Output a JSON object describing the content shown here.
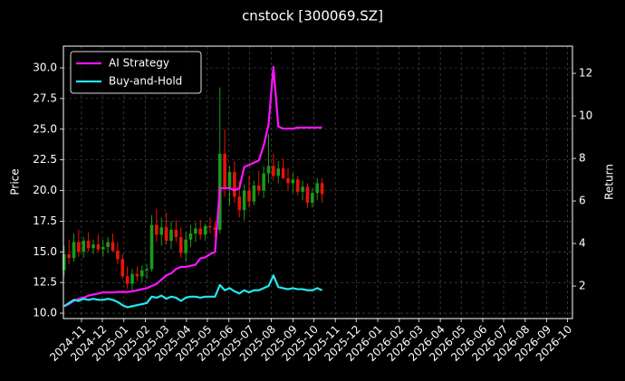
{
  "chart_data": {
    "type": "candlestick",
    "title": "cnstock [300069.SZ]",
    "ylabel": "Price",
    "y2label": "Return",
    "x": [
      "2024-10-07",
      "2024-10-14",
      "2024-10-21",
      "2024-10-28",
      "2024-11-04",
      "2024-11-11",
      "2024-11-18",
      "2024-11-25",
      "2024-12-02",
      "2024-12-09",
      "2024-12-16",
      "2024-12-23",
      "2024-12-30",
      "2025-01-06",
      "2025-01-13",
      "2025-01-20",
      "2025-01-27",
      "2025-02-03",
      "2025-02-10",
      "2025-02-17",
      "2025-02-24",
      "2025-03-03",
      "2025-03-10",
      "2025-03-17",
      "2025-03-24",
      "2025-03-31",
      "2025-04-07",
      "2025-04-14",
      "2025-04-21",
      "2025-04-28",
      "2025-05-05",
      "2025-05-12",
      "2025-05-19",
      "2025-05-26",
      "2025-06-02",
      "2025-06-09",
      "2025-06-16",
      "2025-06-23",
      "2025-06-30",
      "2025-07-07",
      "2025-07-14",
      "2025-07-21",
      "2025-07-28",
      "2025-08-04",
      "2025-08-11",
      "2025-08-18",
      "2025-08-25",
      "2025-09-01",
      "2025-09-08",
      "2025-09-15",
      "2025-09-22",
      "2025-09-29",
      "2025-10-06",
      "2025-10-13"
    ],
    "open": [
      13.5,
      14.8,
      14.5,
      15.8,
      15.0,
      15.9,
      15.3,
      15.6,
      15.2,
      15.4,
      15.8,
      15.1,
      14.4,
      13.0,
      12.4,
      13.2,
      13.0,
      13.5,
      13.6,
      17.2,
      16.4,
      17.0,
      15.9,
      16.8,
      16.2,
      14.9,
      16.0,
      16.5,
      16.9,
      16.4,
      17.1,
      17.0,
      16.8,
      23.0,
      20.2,
      21.5,
      19.5,
      18.4,
      20.0,
      19.1,
      20.4,
      20.0,
      21.4,
      22.0,
      21.2,
      21.8,
      21.0,
      20.6,
      20.9,
      19.9,
      20.3,
      19.0,
      19.8,
      20.6
    ],
    "high": [
      15.5,
      16.0,
      16.5,
      16.8,
      16.2,
      16.6,
      16.0,
      16.4,
      16.0,
      16.2,
      16.5,
      15.8,
      14.8,
      13.8,
      13.6,
      13.8,
      13.9,
      14.0,
      18.0,
      18.5,
      17.8,
      18.2,
      17.5,
      17.6,
      17.0,
      16.6,
      17.2,
      17.4,
      17.6,
      17.3,
      17.8,
      17.5,
      28.4,
      25.0,
      22.0,
      22.4,
      20.8,
      20.5,
      21.2,
      20.8,
      21.6,
      22.0,
      24.6,
      23.0,
      22.4,
      22.6,
      21.8,
      21.4,
      21.2,
      20.8,
      20.6,
      20.2,
      21.0,
      21.0
    ],
    "low": [
      13.0,
      14.0,
      14.2,
      14.6,
      14.5,
      15.0,
      14.8,
      15.0,
      14.6,
      14.9,
      15.0,
      14.0,
      12.8,
      12.0,
      11.8,
      12.6,
      12.5,
      12.8,
      13.4,
      15.8,
      15.5,
      15.6,
      15.2,
      15.8,
      14.5,
      14.2,
      15.4,
      15.8,
      16.0,
      15.9,
      16.5,
      16.2,
      16.5,
      19.5,
      18.8,
      19.0,
      17.8,
      17.6,
      18.6,
      18.8,
      19.6,
      19.4,
      20.6,
      20.8,
      20.6,
      20.9,
      20.0,
      19.8,
      19.6,
      19.2,
      18.6,
      18.6,
      19.2,
      19.0
    ],
    "close": [
      14.8,
      14.5,
      15.8,
      15.0,
      15.9,
      15.3,
      15.6,
      15.2,
      15.4,
      15.8,
      15.1,
      14.4,
      13.0,
      12.4,
      13.2,
      13.0,
      13.5,
      13.6,
      17.2,
      16.4,
      17.0,
      15.9,
      16.8,
      16.2,
      14.9,
      16.0,
      16.5,
      16.9,
      16.4,
      17.1,
      17.0,
      16.8,
      23.0,
      20.2,
      21.5,
      19.5,
      18.4,
      20.0,
      19.1,
      20.4,
      20.0,
      21.4,
      22.0,
      21.2,
      21.8,
      21.0,
      20.6,
      20.9,
      19.9,
      20.3,
      19.0,
      19.8,
      20.6,
      19.7
    ],
    "up_color": "#1a9a1a",
    "down_color": "#e8130c",
    "series": [
      {
        "name": "AI Strategy",
        "color": "#ff14ff",
        "axis": "y2",
        "values": [
          1.05,
          1.15,
          1.3,
          1.4,
          1.45,
          1.55,
          1.6,
          1.65,
          1.7,
          1.7,
          1.7,
          1.72,
          1.72,
          1.72,
          1.75,
          1.8,
          1.85,
          1.9,
          2.0,
          2.1,
          2.3,
          2.5,
          2.6,
          2.8,
          2.9,
          2.9,
          2.95,
          3.0,
          3.3,
          3.35,
          3.5,
          3.6,
          6.6,
          6.6,
          6.6,
          6.5,
          6.6,
          7.6,
          7.7,
          7.8,
          7.9,
          8.6,
          9.6,
          12.3,
          9.5,
          9.4,
          9.4,
          9.4,
          9.45,
          9.45,
          9.45,
          9.45,
          9.45,
          9.45
        ]
      },
      {
        "name": "Buy-and-Hold",
        "color": "#22e8f0",
        "axis": "y2",
        "values": [
          1.05,
          1.2,
          1.35,
          1.3,
          1.4,
          1.35,
          1.4,
          1.35,
          1.35,
          1.4,
          1.35,
          1.25,
          1.1,
          1.0,
          1.05,
          1.1,
          1.15,
          1.2,
          1.5,
          1.45,
          1.55,
          1.4,
          1.5,
          1.45,
          1.3,
          1.45,
          1.5,
          1.5,
          1.45,
          1.5,
          1.5,
          1.5,
          2.05,
          1.8,
          1.9,
          1.75,
          1.65,
          1.8,
          1.7,
          1.8,
          1.8,
          1.9,
          2.0,
          2.5,
          1.95,
          1.9,
          1.85,
          1.9,
          1.85,
          1.85,
          1.8,
          1.8,
          1.9,
          1.8
        ]
      }
    ],
    "xlim": [
      "2024-10-06",
      "2026-10-08"
    ],
    "xticks": [
      "2024-11",
      "2024-12",
      "2025-01",
      "2025-02",
      "2025-03",
      "2025-04",
      "2025-05",
      "2025-06",
      "2025-07",
      "2025-08",
      "2025-09",
      "2025-10",
      "2025-11",
      "2025-12",
      "2026-01",
      "2026-02",
      "2026-03",
      "2026-04",
      "2026-05",
      "2026-06",
      "2026-07",
      "2026-08",
      "2026-09",
      "2026-10"
    ],
    "ylim": [
      9.56,
      31.77
    ],
    "yticks": [
      {
        "value": 10,
        "label": "10.0"
      },
      {
        "value": 12.5,
        "label": "12.5"
      },
      {
        "value": 15,
        "label": "15.0"
      },
      {
        "value": 17.5,
        "label": "17.5"
      },
      {
        "value": 20,
        "label": "20.0"
      },
      {
        "value": 22.5,
        "label": "22.5"
      },
      {
        "value": 25,
        "label": "25.0"
      },
      {
        "value": 27.5,
        "label": "27.5"
      },
      {
        "value": 30,
        "label": "30.0"
      }
    ],
    "y2lim": [
      0.47,
      13.28
    ],
    "y2ticks": [
      2,
      4,
      6,
      8,
      10,
      12
    ],
    "grid": true,
    "legend": "upper left"
  }
}
